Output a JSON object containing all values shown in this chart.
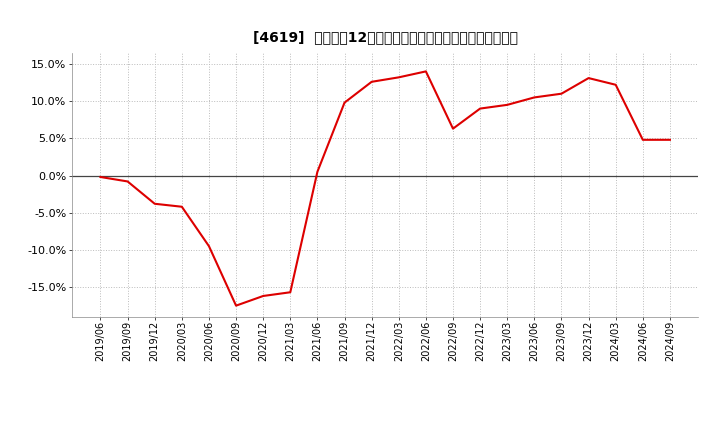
{
  "title": "[4619]  売上高の12か月移動合計の対前年同期増減率の推移",
  "line_color": "#dd0000",
  "background_color": "#ffffff",
  "grid_color": "#bbbbbb",
  "zero_line_color": "#444444",
  "plot_bg_color": "#e8e8e8",
  "ylim": [
    -0.19,
    0.165
  ],
  "yticks": [
    -0.15,
    -0.1,
    -0.05,
    0.0,
    0.05,
    0.1,
    0.15
  ],
  "dates": [
    "2019/06",
    "2019/09",
    "2019/12",
    "2020/03",
    "2020/06",
    "2020/09",
    "2020/12",
    "2021/03",
    "2021/06",
    "2021/09",
    "2021/12",
    "2022/03",
    "2022/06",
    "2022/09",
    "2022/12",
    "2023/03",
    "2023/06",
    "2023/09",
    "2023/12",
    "2024/03",
    "2024/06",
    "2024/09"
  ],
  "values": [
    -0.002,
    -0.008,
    -0.038,
    -0.042,
    -0.095,
    -0.175,
    -0.162,
    -0.157,
    0.005,
    0.098,
    0.126,
    0.132,
    0.14,
    0.063,
    0.09,
    0.095,
    0.105,
    0.11,
    0.131,
    0.122,
    0.048,
    0.048
  ]
}
